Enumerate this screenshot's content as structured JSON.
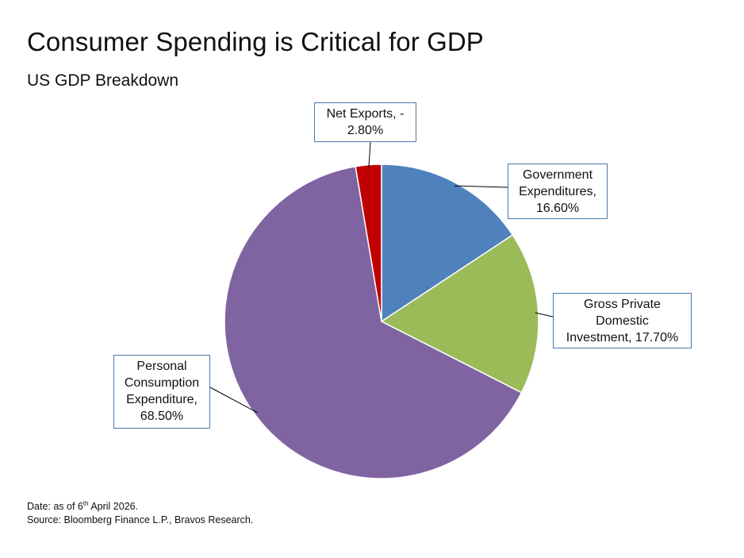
{
  "title": "Consumer Spending is Critical for GDP",
  "subtitle": "US GDP Breakdown",
  "chart_data": {
    "type": "pie",
    "title": "US GDP Breakdown",
    "slices": [
      {
        "name": "Government Expenditures",
        "value": 16.6,
        "label_lines": [
          "Government",
          "Expenditures,",
          "16.60%"
        ],
        "color": "#4f81bd"
      },
      {
        "name": "Gross Private Domestic Investment",
        "value": 17.7,
        "label_lines": [
          "Gross Private",
          "Domestic",
          "Investment, 17.70%"
        ],
        "color": "#9bbb59"
      },
      {
        "name": "Personal Consumption Expenditure",
        "value": 68.5,
        "label_lines": [
          "Personal",
          "Consumption",
          "Expenditure,",
          "68.50%"
        ],
        "color": "#8064a2"
      },
      {
        "name": "Net Exports",
        "value": -2.8,
        "label_lines": [
          "Net Exports, -",
          "2.80%"
        ],
        "color": "#c00000"
      }
    ],
    "start": "12 o'clock",
    "direction": "clockwise",
    "legend": "none"
  },
  "footnote": {
    "date_prefix": "Date: as of 6",
    "date_sup": "th",
    "date_suffix": " April 2026.",
    "source": "Source: Bloomberg Finance L.P., Bravos Research."
  }
}
